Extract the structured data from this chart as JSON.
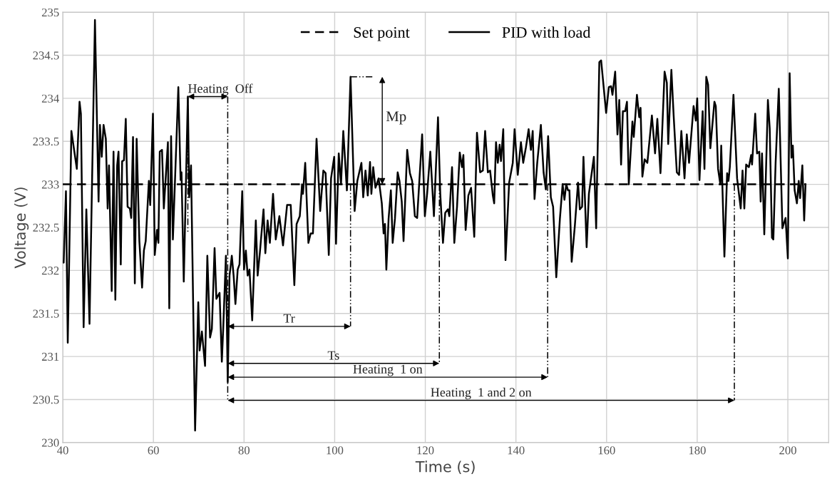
{
  "chart_data": {
    "type": "line",
    "xlabel": "Time (s)",
    "ylabel": "Voltage (V)",
    "xlim": [
      40,
      209
    ],
    "ylim": [
      230,
      235
    ],
    "xticks": [
      40,
      60,
      80,
      100,
      120,
      140,
      160,
      180,
      200
    ],
    "yticks": [
      230,
      230.5,
      231,
      231.5,
      232,
      232.5,
      233,
      233.5,
      234,
      234.5,
      235
    ],
    "grid": true,
    "legend": "top",
    "marker": "none",
    "series": [
      {
        "name": "Set point",
        "color": "#000000",
        "line_style": "dashed",
        "x": [
          40,
          204
        ],
        "values": [
          233,
          233
        ]
      },
      {
        "name": "PID with load",
        "color": "#000000",
        "line_style": "solid",
        "x": [
          40,
          40.2,
          40.7,
          41.1,
          41.9,
          43.1,
          43.7,
          44.0,
          44.6,
          45.2,
          45.9,
          47.1,
          47.9,
          48.2,
          48.6,
          49.0,
          49.5,
          49.9,
          50.2,
          50.8,
          51.2,
          51.6,
          52.0,
          52.3,
          52.8,
          53.1,
          53.5,
          53.9,
          54.3,
          54.8,
          55.1,
          55.5,
          55.9,
          56.3,
          56.9,
          57.5,
          57.9,
          58.3,
          59.0,
          59.3,
          59.9,
          60.3,
          60.8,
          61.1,
          61.4,
          61.9,
          62.3,
          63.2,
          63.5,
          63.9,
          64.3,
          65.5,
          66.0,
          66.2,
          66.7,
          67.6,
          67.9,
          68.3,
          69.2,
          69.9,
          70.2,
          70.7,
          71.4,
          71.9,
          72.5,
          72.9,
          73.5,
          73.9,
          74.6,
          75.1,
          75.4,
          76.0,
          76.4,
          76.8,
          77.3,
          77.7,
          78.1,
          78.6,
          79.0,
          79.6,
          80.0,
          80.4,
          80.8,
          81.2,
          81.8,
          82.6,
          83.0,
          83.5,
          84.3,
          84.7,
          85.2,
          85.7,
          86.4,
          87.0,
          87.8,
          88.6,
          89.5,
          90.3,
          91.1,
          91.6,
          92.3,
          92.8,
          93.0,
          93.5,
          94.2,
          94.7,
          95.2,
          96.0,
          96.8,
          97.5,
          98.0,
          98.7,
          99.2,
          99.9,
          100.3,
          100.9,
          101.4,
          101.9,
          102.7,
          103.5,
          104.4,
          105.0,
          105.9,
          106.3,
          106.8,
          107.3,
          107.8,
          108.1,
          108.5,
          109.0,
          109.7,
          110.4,
          110.8,
          111.1,
          111.4,
          111.9,
          112.4,
          112.8,
          113.3,
          113.9,
          114.3,
          114.8,
          115.2,
          116.0,
          116.6,
          117.1,
          117.7,
          118.2,
          119.3,
          119.9,
          120.4,
          121.1,
          121.9,
          122.8,
          123.3,
          123.9,
          124.4,
          125.0,
          125.3,
          125.9,
          126.4,
          127.0,
          127.6,
          128.1,
          128.4,
          128.9,
          129.5,
          130.1,
          130.8,
          131.4,
          132.1,
          132.7,
          133.2,
          133.8,
          134.3,
          134.9,
          135.2,
          135.6,
          136.0,
          136.4,
          136.7,
          137.2,
          137.7,
          138.5,
          139.3,
          139.7,
          140.4,
          141.1,
          141.6,
          142.2,
          142.8,
          143.3,
          143.7,
          144.1,
          144.7,
          145.5,
          146.1,
          146.6,
          147.1,
          147.7,
          148.2,
          148.9,
          149.7,
          150.3,
          150.7,
          151.1,
          151.5,
          151.8,
          152.3,
          153.0,
          153.7,
          154.1,
          154.6,
          154.9,
          155.6,
          156.1,
          157.2,
          157.7,
          158.4,
          158.8,
          159.9,
          160.5,
          161.0,
          161.3,
          161.9,
          162.4,
          162.8,
          163.2,
          163.6,
          164.1,
          164.5,
          164.9,
          165.4,
          165.7,
          166.0,
          166.7,
          167.2,
          167.5,
          167.9,
          168.4,
          169.0,
          170.0,
          170.7,
          171.2,
          171.9,
          172.8,
          173.3,
          173.6,
          174.3,
          174.8,
          175.5,
          176.0,
          176.5,
          177.2,
          177.7,
          178.2,
          179.2,
          179.7,
          180.0,
          180.5,
          181.2,
          181.6,
          182.0,
          182.4,
          182.9,
          183.8,
          184.1,
          184.6,
          185.1,
          185.3,
          186.0,
          186.6,
          186.9,
          187.2,
          188.0,
          188.8,
          189.6,
          190.0,
          190.4,
          190.8,
          191.4,
          191.9,
          192.1,
          192.8,
          193.2,
          193.7,
          194.0,
          194.3,
          194.8,
          195.6,
          196.0,
          196.5,
          196.8,
          197.3,
          198.0,
          198.8,
          199.5,
          200.0,
          200.4,
          200.8,
          201.1,
          201.5,
          202.0,
          202.4,
          202.7,
          203.2,
          203.6,
          203.9
        ],
        "values": [
          232.1,
          232.09,
          232.92,
          231.16,
          233.62,
          233.18,
          233.96,
          233.82,
          231.34,
          232.71,
          231.38,
          234.91,
          232.8,
          233.69,
          233.32,
          233.69,
          233.53,
          232.72,
          233.22,
          231.76,
          233.38,
          231.66,
          233.22,
          233.38,
          232.07,
          233.27,
          233.28,
          233.76,
          232.74,
          232.72,
          232.61,
          233.55,
          231.85,
          233.53,
          232.34,
          231.8,
          232.23,
          232.34,
          233.04,
          232.76,
          233.82,
          232.18,
          232.47,
          232.32,
          233.38,
          233.4,
          232.72,
          233.49,
          231.56,
          233.56,
          232.36,
          234.13,
          233.05,
          233.14,
          231.87,
          234.02,
          232.85,
          233.22,
          230.14,
          231.63,
          231.07,
          231.29,
          230.89,
          232.17,
          231.22,
          231.32,
          232.26,
          231.67,
          231.74,
          230.94,
          231.32,
          232.17,
          230.7,
          231.94,
          232.17,
          231.94,
          231.61,
          232.01,
          232.07,
          232.92,
          232.01,
          232.23,
          231.94,
          232.01,
          231.42,
          232.58,
          231.94,
          232.21,
          232.71,
          232.2,
          232.58,
          232.32,
          232.89,
          232.36,
          232.63,
          232.29,
          232.76,
          232.76,
          231.83,
          232.54,
          232.63,
          233.0,
          232.89,
          233.25,
          232.32,
          232.43,
          232.43,
          233.53,
          232.69,
          233.16,
          233.13,
          232.18,
          233.07,
          233.32,
          232.31,
          233.36,
          233.0,
          233.62,
          232.93,
          234.25,
          232.69,
          233.04,
          233.25,
          232.85,
          233.16,
          232.87,
          233.26,
          232.89,
          233.2,
          232.96,
          233.07,
          232.78,
          232.43,
          232.54,
          232.01,
          232.6,
          232.93,
          232.32,
          232.6,
          233.14,
          233.04,
          232.8,
          232.34,
          233.4,
          233.13,
          233.04,
          232.63,
          232.61,
          233.58,
          232.63,
          232.89,
          233.38,
          232.63,
          233.78,
          232.89,
          232.32,
          232.67,
          232.71,
          232.63,
          233.2,
          232.32,
          232.74,
          233.37,
          233.2,
          233.34,
          232.47,
          232.87,
          232.96,
          232.39,
          233.6,
          233.14,
          233.16,
          233.62,
          233.14,
          233.16,
          232.87,
          232.78,
          233.49,
          233.25,
          233.46,
          233.27,
          233.64,
          232.12,
          233.02,
          233.25,
          233.64,
          233.11,
          233.49,
          233.25,
          233.43,
          233.64,
          233.4,
          233.62,
          232.83,
          233.25,
          233.69,
          233.14,
          232.94,
          233.56,
          232.85,
          232.74,
          231.92,
          232.6,
          233.0,
          232.82,
          233.0,
          232.93,
          232.93,
          232.1,
          232.52,
          233.02,
          232.71,
          232.74,
          233.32,
          232.27,
          232.89,
          233.32,
          232.49,
          234.42,
          234.44,
          233.83,
          234.13,
          234.14,
          234.04,
          234.31,
          233.58,
          233.98,
          233.23,
          233.85,
          233.85,
          233.96,
          233.0,
          233.45,
          233.73,
          233.55,
          234.04,
          233.78,
          233.89,
          233.09,
          233.29,
          233.25,
          233.8,
          233.36,
          233.76,
          233.13,
          234.31,
          234.18,
          233.47,
          234.33,
          233.8,
          233.14,
          233.11,
          233.62,
          233.07,
          233.58,
          233.25,
          233.91,
          233.74,
          234.0,
          233.05,
          233.85,
          233.18,
          234.25,
          234.16,
          233.42,
          233.96,
          233.91,
          233.18,
          233.0,
          233.45,
          232.16,
          233.13,
          233.04,
          233.2,
          234.04,
          233.07,
          232.72,
          233.16,
          232.72,
          233.23,
          233.2,
          233.34,
          233.23,
          233.82,
          233.36,
          233.38,
          232.8,
          233.36,
          232.42,
          233.98,
          233.65,
          232.38,
          232.36,
          233.25,
          234.11,
          232.49,
          232.61,
          232.14,
          234.29,
          233.31,
          233.45,
          232.93,
          232.78,
          233.04,
          232.84,
          233.22,
          232.58,
          233.0
        ]
      },
      {
        "color": "#000000",
        "line_style": "dotted",
        "x": [
          67.6,
          67.6
        ],
        "values": [
          234.02,
          232.45
        ]
      },
      {
        "color": "#000000",
        "line_style": "dotted",
        "x": [
          76.4,
          76.4
        ],
        "values": [
          234.02,
          230.5
        ]
      },
      {
        "color": "#000000",
        "line_style": "dotted",
        "x": [
          103.5,
          103.5
        ],
        "values": [
          233.0,
          231.35
        ]
      },
      {
        "color": "#000000",
        "line_style": "dotted",
        "x": [
          103.5,
          108.5
        ],
        "values": [
          234.25,
          234.25
        ]
      },
      {
        "color": "#000000",
        "line_style": "dotted",
        "x": [
          123.1,
          123.1
        ],
        "values": [
          233.0,
          230.92
        ]
      },
      {
        "color": "#000000",
        "line_style": "dotted",
        "x": [
          147.0,
          147.0
        ],
        "values": [
          233.0,
          230.76
        ]
      },
      {
        "color": "#000000",
        "line_style": "dotted",
        "x": [
          188.2,
          188.2
        ],
        "values": [
          233.0,
          230.49
        ]
      },
      {
        "name": "Heating  Off",
        "color": "#000000",
        "line_style": "solid",
        "x": [
          67.6,
          76.4
        ],
        "values": [
          234.02,
          234.02
        ]
      },
      {
        "name": "Mp",
        "color": "#000000",
        "line_style": "solid",
        "x": [
          110.5,
          110.5
        ],
        "values": [
          234.25,
          233.0
        ]
      },
      {
        "name": "Tr",
        "color": "#000000",
        "line_style": "solid",
        "x": [
          76.4,
          103.5
        ],
        "values": [
          231.35,
          231.35
        ]
      },
      {
        "name": "Ts",
        "color": "#000000",
        "line_style": "solid",
        "x": [
          76.4,
          123.1
        ],
        "values": [
          230.92,
          230.92
        ]
      },
      {
        "name": "Heating  1 on",
        "color": "#000000",
        "line_style": "solid",
        "x": [
          76.4,
          147.0
        ],
        "values": [
          230.76,
          230.76
        ]
      },
      {
        "name": "Heating  1 and 2 on",
        "color": "#000000",
        "line_style": "solid",
        "x": [
          76.4,
          188.2
        ],
        "values": [
          230.49,
          230.49
        ]
      }
    ]
  }
}
